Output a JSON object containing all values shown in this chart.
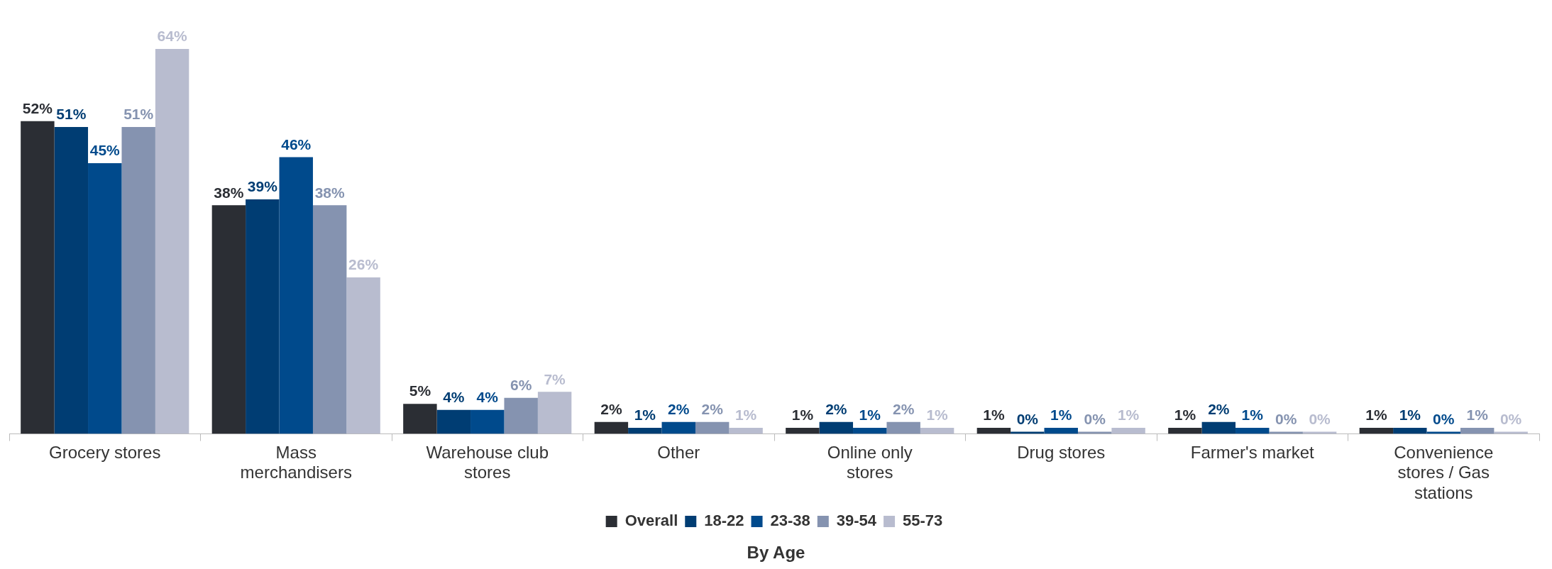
{
  "chart_data": {
    "type": "bar",
    "xlabel": "By Age",
    "categories": [
      "Grocery stores",
      "Mass merchandisers",
      "Warehouse club stores",
      "Other",
      "Online only stores",
      "Drug stores",
      "Farmer's market",
      "Convenience stores / Gas stations"
    ],
    "series": [
      {
        "name": "Overall",
        "color": "#2b2e34",
        "values": [
          52,
          38,
          5,
          2,
          1,
          1,
          1,
          1
        ],
        "value_labels": [
          "52%",
          "38%",
          "5%",
          "2%",
          "1%",
          "1%",
          "1%",
          "1%"
        ]
      },
      {
        "name": "18-22",
        "color": "#003d73",
        "values": [
          51,
          39,
          4,
          1,
          2,
          0,
          2,
          1
        ],
        "value_labels": [
          "51%",
          "39%",
          "4%",
          "1%",
          "2%",
          "0%",
          "2%",
          "1%"
        ]
      },
      {
        "name": "23-38",
        "color": "#004a8c",
        "values": [
          45,
          46,
          4,
          2,
          1,
          1,
          1,
          0
        ],
        "value_labels": [
          "45%",
          "46%",
          "4%",
          "2%",
          "1%",
          "1%",
          "1%",
          "0%"
        ]
      },
      {
        "name": "39-54",
        "color": "#8593b0",
        "values": [
          51,
          38,
          6,
          2,
          2,
          0,
          0,
          1
        ],
        "value_labels": [
          "51%",
          "38%",
          "6%",
          "2%",
          "2%",
          "0%",
          "0%",
          "1%"
        ]
      },
      {
        "name": "55-73",
        "color": "#b8bccf",
        "values": [
          64,
          26,
          7,
          1,
          1,
          1,
          0,
          0
        ],
        "value_labels": [
          "64%",
          "26%",
          "7%",
          "1%",
          "1%",
          "1%",
          "0%",
          "0%"
        ]
      }
    ],
    "legend": "bottom",
    "grid": false
  }
}
